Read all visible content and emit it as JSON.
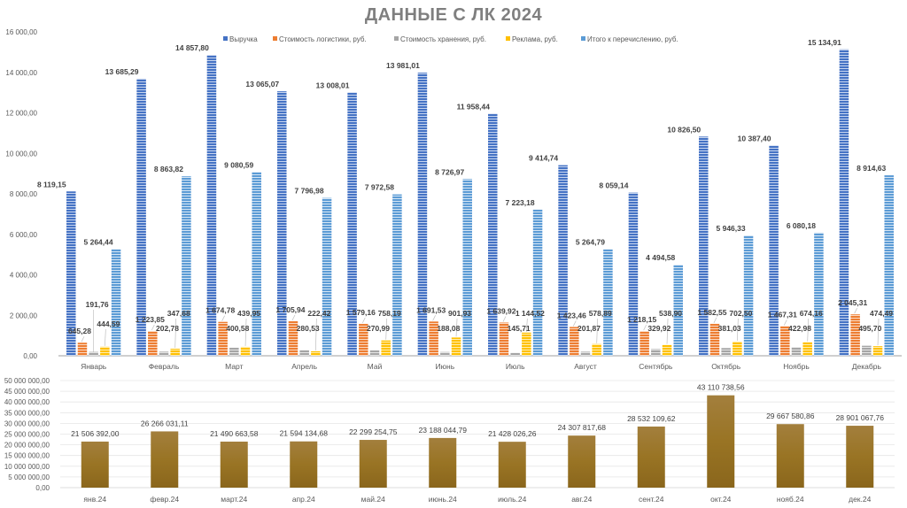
{
  "title": "ДАННЫЕ С ЛК 2024",
  "chart_data": [
    {
      "type": "bar",
      "title": "ДАННЫЕ С ЛК 2024",
      "xlabel": "",
      "ylabel": "",
      "ylim": [
        0,
        16000
      ],
      "y_ticks": [
        "0,00",
        "2 000,00",
        "4 000,00",
        "6 000,00",
        "8 000,00",
        "10 000,00",
        "12 000,00",
        "14 000,00",
        "16 000,00"
      ],
      "y_tick_values": [
        0,
        2000,
        4000,
        6000,
        8000,
        10000,
        12000,
        14000,
        16000
      ],
      "grid": false,
      "legend": "top-center",
      "categories": [
        "Январь",
        "Февраль",
        "Март",
        "Апрель",
        "Май",
        "Июнь",
        "Июль",
        "Август",
        "Сентябрь",
        "Октябрь",
        "Ноябрь",
        "Декабрь"
      ],
      "series": [
        {
          "name": "Выручка",
          "color": "#4472c4",
          "values": [
            8119.15,
            13685.29,
            14857.8,
            13065.07,
            13008.01,
            13981.01,
            11958.44,
            9414.74,
            8059.14,
            10826.5,
            10387.4,
            15134.91
          ],
          "labels": [
            "8 119,15",
            "13 685,29",
            "14 857,80",
            "13 065,07",
            "13 008,01",
            "13 981,01",
            "11 958,44",
            "9 414,74",
            "8 059,14",
            "10 826,50",
            "10 387,40",
            "15 134,91"
          ]
        },
        {
          "name": "Стоимость логистики, руб.",
          "color": "#ed7d31",
          "values": [
            645.28,
            1223.85,
            1674.78,
            1705.94,
            1579.16,
            1691.53,
            1639.92,
            1423.46,
            1218.15,
            1582.55,
            1467.31,
            2045.31
          ],
          "labels": [
            "645,28",
            "1 223,85",
            "1 674,78",
            "1 705,94",
            "1 579,16",
            "1 691,53",
            "1 639,92",
            "1 423,46",
            "1 218,15",
            "1 582,55",
            "1 467,31",
            "2 045,31"
          ]
        },
        {
          "name": "Стоимость хранения, руб.",
          "color": "#a5a5a5",
          "values": [
            191.76,
            202.78,
            400.58,
            280.53,
            270.99,
            188.08,
            145.71,
            201.87,
            329.92,
            381.03,
            422.98,
            495.7
          ],
          "labels": [
            "191,76",
            "202,78",
            "400,58",
            "280,53",
            "270,99",
            "188,08",
            "145,71",
            "201,87",
            "329,92",
            "381,03",
            "422,98",
            "495,70"
          ]
        },
        {
          "name": "Реклама, руб.",
          "color": "#ffc000",
          "values": [
            444.59,
            347.68,
            439.95,
            222.42,
            758.19,
            901.93,
            1144.52,
            578.89,
            538.9,
            702.5,
            674.16,
            474.49
          ],
          "labels": [
            "444,59",
            "347,68",
            "439,95",
            "222,42",
            "758,19",
            "901,93",
            "1 144,52",
            "578,89",
            "538,90",
            "702,50",
            "674,16",
            "474,49"
          ]
        },
        {
          "name": "Итого к перечислению, руб.",
          "color": "#5b9bd5",
          "values": [
            5264.44,
            8863.82,
            9080.59,
            7796.98,
            7972.58,
            8726.97,
            7223.18,
            5264.79,
            4494.58,
            5946.33,
            6080.18,
            8914.63
          ],
          "labels": [
            "5 264,44",
            "8 863,82",
            "9 080,59",
            "7 796,98",
            "7 972,58",
            "8 726,97",
            "7 223,18",
            "5 264,79",
            "4 494,58",
            "5 946,33",
            "6 080,18",
            "8 914,63"
          ]
        }
      ]
    },
    {
      "type": "bar",
      "title": "",
      "xlabel": "",
      "ylabel": "",
      "ylim": [
        0,
        50000000
      ],
      "y_ticks": [
        "0,00",
        "5 000 000,00",
        "10 000 000,00",
        "15 000 000,00",
        "20 000 000,00",
        "25 000 000,00",
        "30 000 000,00",
        "35 000 000,00",
        "40 000 000,00",
        "45 000 000,00",
        "50 000 000,00"
      ],
      "y_tick_values": [
        0,
        5000000,
        10000000,
        15000000,
        20000000,
        25000000,
        30000000,
        35000000,
        40000000,
        45000000,
        50000000
      ],
      "grid": true,
      "legend": "none",
      "categories": [
        "янв.24",
        "февр.24",
        "март.24",
        "апр.24",
        "май.24",
        "июнь.24",
        "июль.24",
        "авг.24",
        "сент.24",
        "окт.24",
        "нояб.24",
        "дек.24"
      ],
      "series": [
        {
          "name": "",
          "color": "#9a7428",
          "values": [
            21506392.0,
            26266031.11,
            21490663.58,
            21594134.68,
            22299254.75,
            23188044.79,
            21428026.26,
            24307817.68,
            28532109.62,
            43110738.56,
            29667580.86,
            28901067.76
          ],
          "labels": [
            "21 506 392,00",
            "26 266 031,11",
            "21 490 663,58",
            "21 594 134,68",
            "22 299 254,75",
            "23 188 044,79",
            "21 428 026,26",
            "24 307 817,68",
            "28 532 109,62",
            "43 110 738,56",
            "29 667 580,86",
            "28 901 067,76"
          ]
        }
      ]
    }
  ]
}
